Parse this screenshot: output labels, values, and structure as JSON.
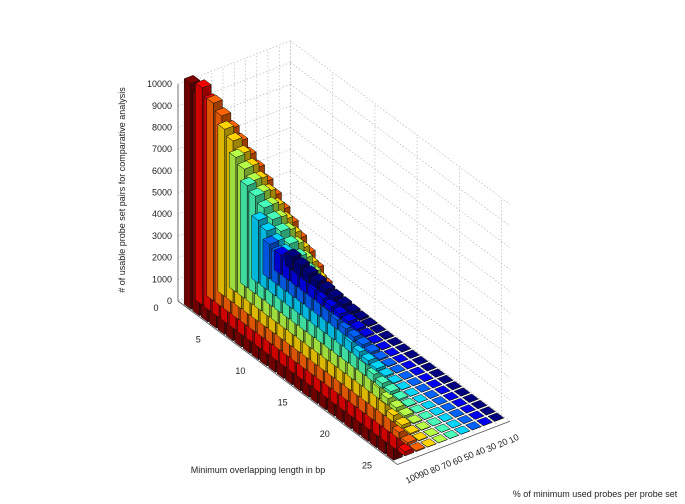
{
  "chart_data": {
    "type": "bar3d",
    "zlabel": "# of usable probe set pairs for comparative analysis",
    "xlabel": "Minimum overlapping length in bp",
    "ylabel": "% of minimum used probes per probe set",
    "z_ticks": [
      "0",
      "1000",
      "2000",
      "3000",
      "4000",
      "5000",
      "6000",
      "7000",
      "8000",
      "9000",
      "10000"
    ],
    "x_ticks": [
      "0",
      "5",
      "10",
      "15",
      "20",
      "25"
    ],
    "y_ticks": [
      "10",
      "20",
      "30",
      "40",
      "50",
      "60",
      "70",
      "80",
      "90",
      "100"
    ],
    "zlim": [
      0,
      10000
    ],
    "grid": true,
    "min_overlap_bp": [
      1,
      2,
      3,
      4,
      5,
      6,
      7,
      8,
      9,
      10,
      11,
      12,
      13,
      14,
      15,
      16,
      17,
      18,
      19,
      20,
      21,
      22,
      23,
      24,
      25
    ],
    "min_used_probes_pct": [
      10,
      20,
      30,
      40,
      50,
      60,
      70,
      80,
      90,
      100
    ],
    "series": [
      {
        "values": [
          10400,
          10100,
          9800,
          9500,
          9200,
          8900,
          8600,
          8250,
          7900,
          7550,
          7200,
          6850,
          6450,
          6050,
          5650,
          5250,
          4850,
          4400,
          3950,
          3500,
          3000,
          2500,
          1950,
          1350,
          650
        ]
      },
      {
        "values": [
          10000,
          9650,
          9350,
          9050,
          8750,
          8400,
          8100,
          7750,
          7400,
          7050,
          6700,
          6300,
          5900,
          5500,
          5100,
          4650,
          4250,
          3800,
          3300,
          2850,
          2350,
          1800,
          1250,
          700,
          200
        ]
      },
      {
        "values": [
          9100,
          8800,
          8500,
          8200,
          7850,
          7550,
          7200,
          6850,
          6500,
          6150,
          5750,
          5350,
          4950,
          4500,
          4050,
          3600,
          3150,
          2650,
          2150,
          1650,
          1150,
          650,
          300,
          120,
          40
        ]
      },
      {
        "values": [
          7700,
          7450,
          7150,
          6850,
          6550,
          6250,
          5900,
          5550,
          5200,
          4800,
          4400,
          4000,
          3600,
          3150,
          2700,
          2250,
          1800,
          1350,
          950,
          550,
          300,
          140,
          60,
          25,
          10
        ]
      },
      {
        "values": [
          6200,
          5950,
          5700,
          5450,
          5150,
          4850,
          4550,
          4200,
          3850,
          3500,
          3150,
          2750,
          2350,
          1950,
          1550,
          1150,
          800,
          500,
          300,
          170,
          90,
          45,
          20,
          8,
          3
        ]
      },
      {
        "values": [
          4700,
          4500,
          4250,
          4000,
          3750,
          3450,
          3150,
          2850,
          2500,
          2150,
          1800,
          1450,
          1100,
          800,
          550,
          350,
          220,
          130,
          70,
          35,
          18,
          8,
          3,
          1,
          0
        ]
      },
      {
        "values": [
          2900,
          2700,
          2500,
          2300,
          2100,
          1850,
          1600,
          1350,
          1100,
          850,
          640,
          460,
          310,
          200,
          120,
          70,
          40,
          20,
          10,
          5,
          2,
          1,
          0,
          0,
          0
        ]
      },
      {
        "values": [
          1600,
          1450,
          1300,
          1150,
          1000,
          840,
          690,
          550,
          420,
          310,
          220,
          150,
          100,
          60,
          35,
          20,
          10,
          5,
          2,
          1,
          0,
          0,
          0,
          0,
          0
        ]
      },
      {
        "values": [
          900,
          780,
          660,
          550,
          450,
          360,
          280,
          210,
          150,
          100,
          65,
          40,
          24,
          13,
          7,
          3,
          1,
          0,
          0,
          0,
          0,
          0,
          0,
          0,
          0
        ]
      },
      {
        "values": [
          600,
          500,
          410,
          330,
          260,
          200,
          150,
          105,
          72,
          46,
          28,
          16,
          9,
          4,
          2,
          1,
          0,
          0,
          0,
          0,
          0,
          0,
          0,
          0,
          0
        ]
      }
    ]
  }
}
